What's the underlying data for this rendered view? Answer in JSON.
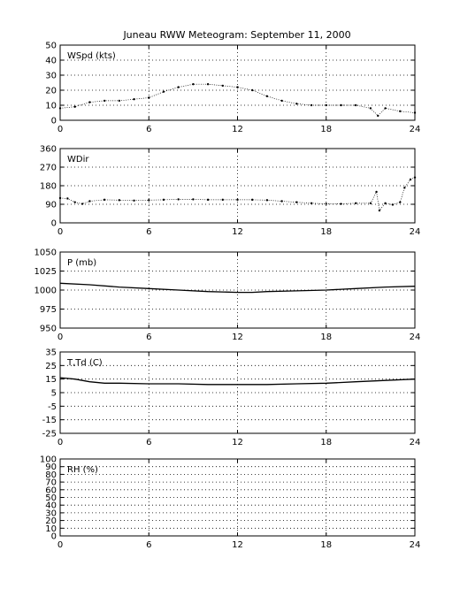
{
  "title": "Juneau RWW Meteogram: September 11, 2000",
  "chart_data": [
    {
      "type": "scatter",
      "label": "WSpd (kts)",
      "xlim": [
        0,
        24
      ],
      "xticks": [
        "0",
        "6",
        "12",
        "18",
        "24"
      ],
      "ylim": [
        0,
        50
      ],
      "yticks": [
        "0",
        "10",
        "20",
        "30",
        "40",
        "50"
      ],
      "grid": true,
      "series": [
        {
          "values": [
            [
              0,
              8
            ],
            [
              1,
              9
            ],
            [
              2,
              12
            ],
            [
              3,
              13
            ],
            [
              4,
              13
            ],
            [
              5,
              14
            ],
            [
              6,
              15
            ],
            [
              7,
              19
            ],
            [
              8,
              22
            ],
            [
              9,
              24
            ],
            [
              10,
              24
            ],
            [
              11,
              23
            ],
            [
              12,
              22
            ],
            [
              13,
              20
            ],
            [
              14,
              16
            ],
            [
              15,
              13
            ],
            [
              16,
              11
            ],
            [
              17,
              10
            ],
            [
              18,
              10
            ],
            [
              19,
              10
            ],
            [
              20,
              10
            ],
            [
              21,
              8
            ],
            [
              21.5,
              3
            ],
            [
              22,
              8
            ],
            [
              23,
              6
            ],
            [
              24,
              5
            ]
          ]
        }
      ]
    },
    {
      "type": "scatter",
      "label": "WDir",
      "xlim": [
        0,
        24
      ],
      "xticks": [
        "0",
        "6",
        "12",
        "18",
        "24"
      ],
      "ylim": [
        0,
        360
      ],
      "yticks": [
        "0",
        "90",
        "180",
        "270",
        "360"
      ],
      "grid": true,
      "series": [
        {
          "values": [
            [
              0,
              120
            ],
            [
              0.5,
              118
            ],
            [
              1,
              100
            ],
            [
              1.5,
              92
            ],
            [
              2,
              105
            ],
            [
              3,
              112
            ],
            [
              4,
              110
            ],
            [
              5,
              108
            ],
            [
              6,
              110
            ],
            [
              7,
              112
            ],
            [
              8,
              114
            ],
            [
              9,
              114
            ],
            [
              10,
              112
            ],
            [
              11,
              112
            ],
            [
              12,
              112
            ],
            [
              13,
              112
            ],
            [
              14,
              110
            ],
            [
              15,
              105
            ],
            [
              16,
              100
            ],
            [
              17,
              95
            ],
            [
              18,
              92
            ],
            [
              19,
              92
            ],
            [
              20,
              95
            ],
            [
              21,
              95
            ],
            [
              21.4,
              150
            ],
            [
              21.6,
              60
            ],
            [
              22,
              95
            ],
            [
              22.5,
              88
            ],
            [
              23,
              100
            ],
            [
              23.3,
              170
            ],
            [
              23.7,
              210
            ],
            [
              24,
              220
            ]
          ]
        }
      ]
    },
    {
      "type": "line",
      "label": "P (mb)",
      "xlim": [
        0,
        24
      ],
      "xticks": [
        "0",
        "6",
        "12",
        "18",
        "24"
      ],
      "ylim": [
        950,
        1050
      ],
      "yticks": [
        "950",
        "975",
        "1000",
        "1025",
        "1050"
      ],
      "grid": true,
      "series": [
        {
          "values": [
            [
              0,
              1009
            ],
            [
              2,
              1007
            ],
            [
              4,
              1004
            ],
            [
              6,
              1002
            ],
            [
              8,
              1000
            ],
            [
              10,
              998
            ],
            [
              12,
              997
            ],
            [
              13,
              997
            ],
            [
              14,
              998
            ],
            [
              16,
              999
            ],
            [
              18,
              1000
            ],
            [
              20,
              1002
            ],
            [
              22,
              1004
            ],
            [
              24,
              1005
            ]
          ]
        }
      ]
    },
    {
      "type": "line",
      "label": "T,Td (C)",
      "xlim": [
        0,
        24
      ],
      "xticks": [
        "0",
        "6",
        "12",
        "18",
        "24"
      ],
      "ylim": [
        -25,
        35
      ],
      "yticks": [
        "-25",
        "-15",
        "-5",
        "5",
        "15",
        "25",
        "35"
      ],
      "grid": true,
      "series": [
        {
          "values": [
            [
              0,
              16
            ],
            [
              1,
              15
            ],
            [
              2,
              13
            ],
            [
              3,
              12
            ],
            [
              4,
              12
            ],
            [
              6,
              11.5
            ],
            [
              8,
              11.5
            ],
            [
              10,
              11
            ],
            [
              12,
              11
            ],
            [
              14,
              11
            ],
            [
              16,
              11.5
            ],
            [
              18,
              12
            ],
            [
              20,
              13
            ],
            [
              22,
              14
            ],
            [
              24,
              15
            ]
          ]
        }
      ]
    },
    {
      "type": "line",
      "label": "RH (%)",
      "xlim": [
        0,
        24
      ],
      "xticks": [
        "0",
        "6",
        "12",
        "18",
        "24"
      ],
      "ylim": [
        0,
        100
      ],
      "yticks": [
        "0",
        "10",
        "20",
        "30",
        "40",
        "50",
        "60",
        "70",
        "80",
        "90",
        "100"
      ],
      "grid": true,
      "series": []
    }
  ]
}
